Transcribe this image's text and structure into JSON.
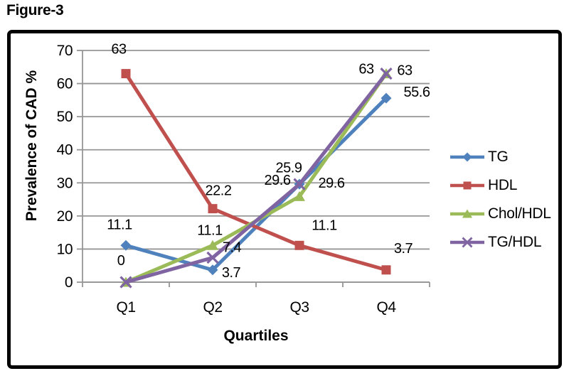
{
  "figure_label": "Figure-3",
  "colors": {
    "grid": "#969696",
    "axis": "#969696",
    "text": "#000000",
    "frame_border": "#000000",
    "background": "#FFFFFF"
  },
  "chart_data": {
    "type": "line",
    "title": "",
    "xlabel": "Quartiles",
    "ylabel": "Prevalence of CAD %",
    "categories": [
      "Q1",
      "Q2",
      "Q3",
      "Q4"
    ],
    "y_ticks": [
      0,
      10,
      20,
      30,
      40,
      50,
      60,
      70
    ],
    "ylim": [
      0,
      70
    ],
    "grid": true,
    "legend_position": "right",
    "series": [
      {
        "name": "TG",
        "color": "#4F81BD",
        "marker": "diamond",
        "values": [
          11.1,
          3.7,
          29.6,
          55.6
        ],
        "labels": [
          "11.1",
          "3.7",
          "29.6",
          "55.6"
        ]
      },
      {
        "name": "HDL",
        "color": "#C0504D",
        "marker": "square",
        "values": [
          63,
          22.2,
          11.1,
          3.7
        ],
        "labels": [
          "63",
          "22.2",
          "11.1",
          "3.7"
        ]
      },
      {
        "name": "Chol/HDL",
        "color": "#9BBB59",
        "marker": "triangle",
        "values": [
          0,
          11.1,
          25.9,
          63
        ],
        "labels": [
          "0",
          "11.1",
          "25.9",
          "63"
        ]
      },
      {
        "name": "TG/HDL",
        "color": "#8064A2",
        "marker": "x",
        "values": [
          0,
          7.4,
          29.6,
          63
        ],
        "labels": [
          "",
          "7.4",
          "29.6",
          "63"
        ]
      }
    ]
  }
}
